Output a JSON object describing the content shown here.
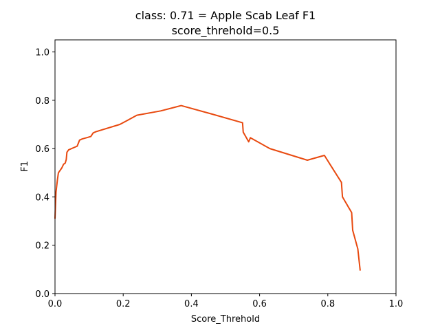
{
  "chart_data": {
    "type": "line",
    "title": "class: 0.71 = Apple Scab Leaf F1",
    "subtitle": "score_threhold=0.5",
    "xlabel": "Score_Threhold",
    "ylabel": "F1",
    "xlim": [
      0,
      1
    ],
    "ylim": [
      0,
      1.05
    ],
    "xticks": [
      "0.0",
      "0.2",
      "0.4",
      "0.6",
      "0.8",
      "1.0"
    ],
    "yticks": [
      "0.0",
      "0.2",
      "0.4",
      "0.6",
      "0.8",
      "1.0"
    ],
    "grid": false,
    "series": [
      {
        "color": "#e8490f",
        "x": [
          0.0,
          0.003,
          0.007,
          0.01,
          0.02,
          0.025,
          0.03,
          0.033,
          0.035,
          0.04,
          0.065,
          0.072,
          0.08,
          0.105,
          0.112,
          0.12,
          0.19,
          0.21,
          0.24,
          0.31,
          0.37,
          0.46,
          0.55,
          0.552,
          0.56,
          0.568,
          0.573,
          0.63,
          0.74,
          0.79,
          0.81,
          0.84,
          0.843,
          0.87,
          0.873,
          0.888,
          0.895
        ],
        "y": [
          0.31,
          0.42,
          0.47,
          0.5,
          0.52,
          0.535,
          0.54,
          0.555,
          0.585,
          0.595,
          0.61,
          0.635,
          0.64,
          0.65,
          0.665,
          0.67,
          0.7,
          0.715,
          0.738,
          0.756,
          0.778,
          0.743,
          0.707,
          0.668,
          0.648,
          0.628,
          0.645,
          0.6,
          0.552,
          0.572,
          0.527,
          0.46,
          0.4,
          0.335,
          0.262,
          0.185,
          0.095
        ]
      }
    ]
  }
}
